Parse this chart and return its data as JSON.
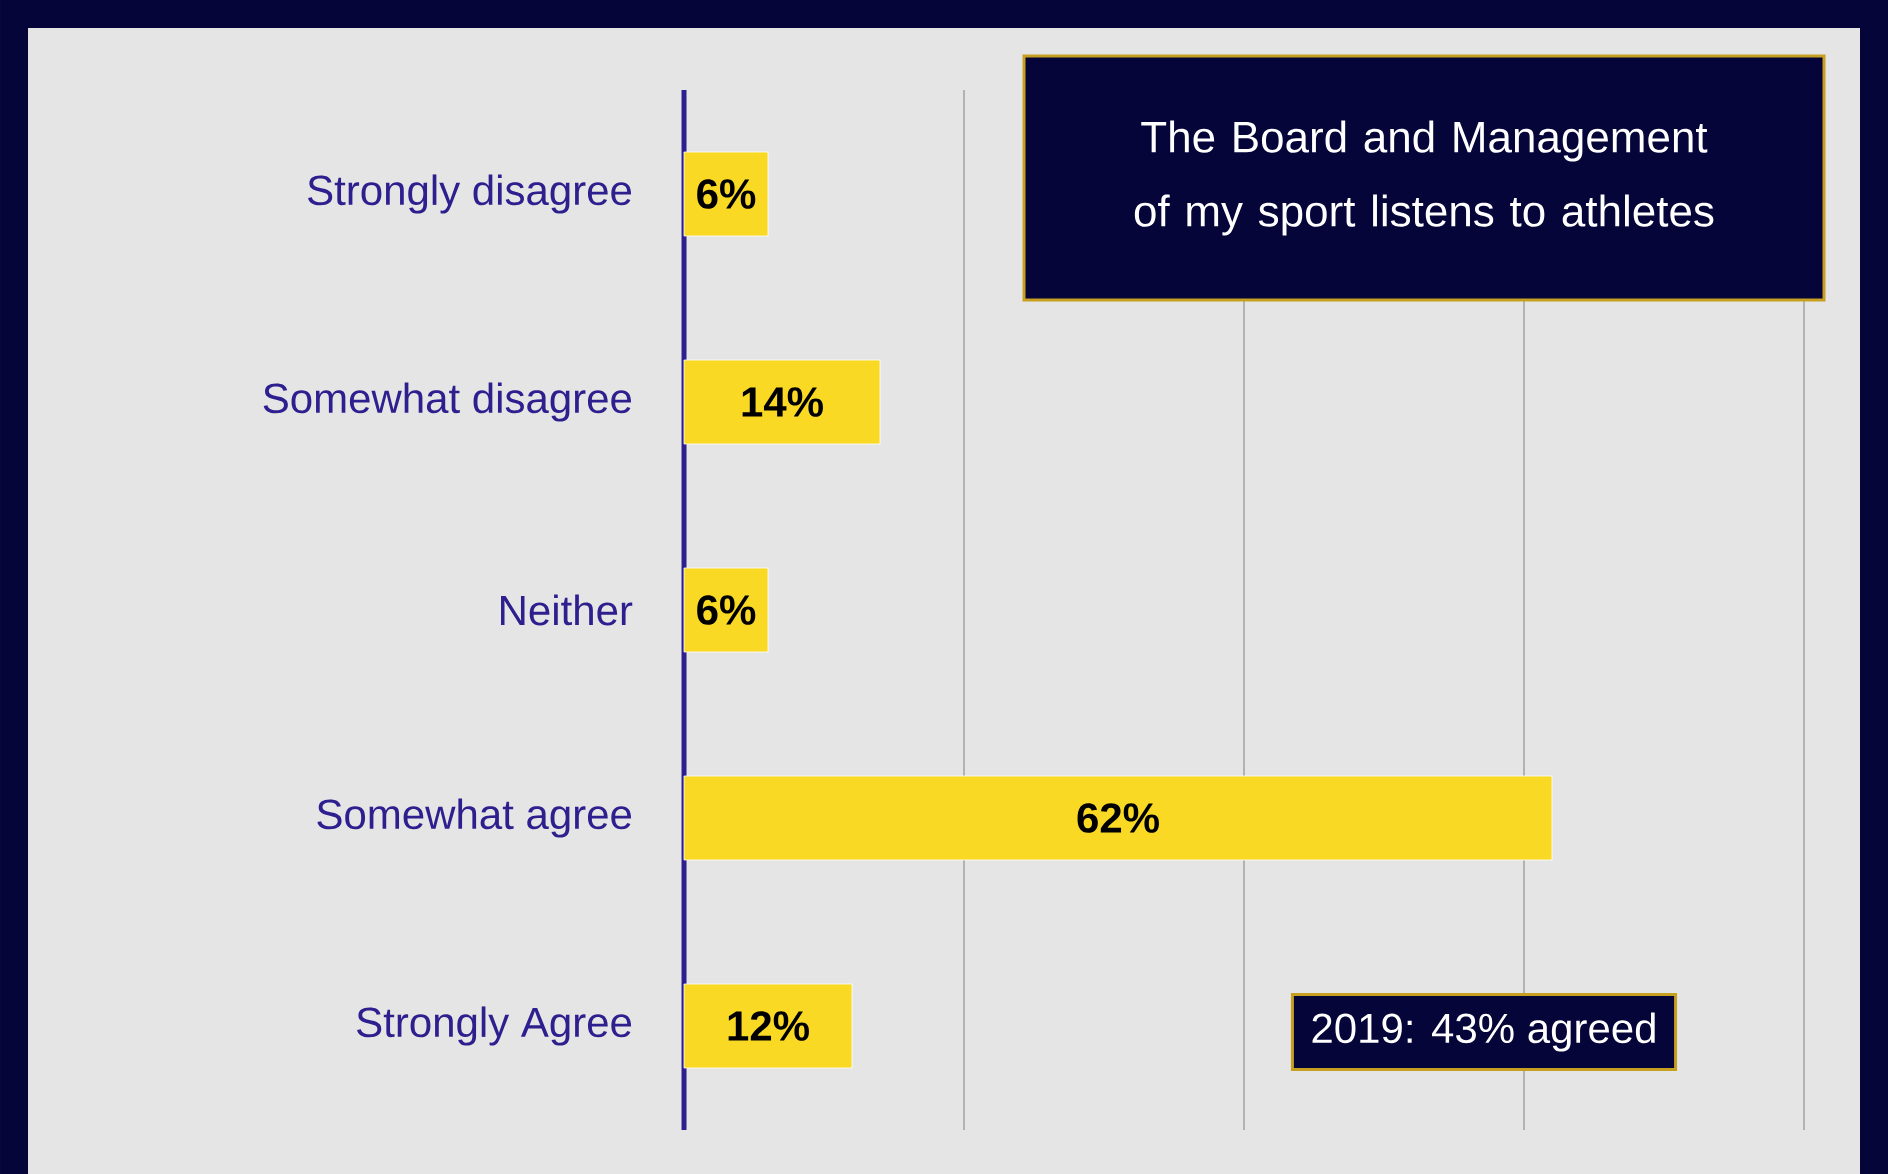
{
  "chart_data": {
    "type": "bar",
    "orientation": "horizontal",
    "title": "The Board and Management of my sport listens to athletes",
    "categories": [
      "Strongly disagree",
      "Somewhat disagree",
      "Neither",
      "Somewhat agree",
      "Strongly Agree"
    ],
    "values": [
      6,
      14,
      6,
      62,
      12
    ],
    "color": "#f9d923",
    "value_labels": [
      "6%",
      "14%",
      "6%",
      "62%",
      "12%"
    ],
    "xlim": [
      0,
      84
    ],
    "xticks": [
      {
        "value": 0,
        "label": null
      },
      {
        "value": 20,
        "label": null
      },
      {
        "value": 40,
        "label": null
      },
      {
        "value": 60,
        "label": null
      },
      {
        "value": 80,
        "label": null
      }
    ],
    "grid": "x",
    "tick_labels": "y",
    "annotations": [
      "2019: 43% agreed"
    ]
  }
}
